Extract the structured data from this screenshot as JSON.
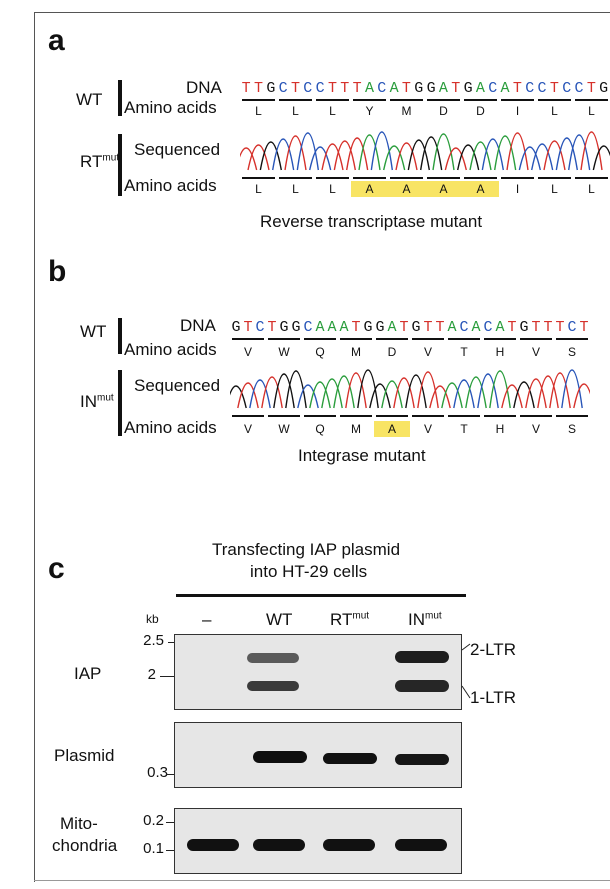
{
  "panels": {
    "a": {
      "letter": "a",
      "wt_label": "WT",
      "rt_label": "RT",
      "rt_sup": "mut",
      "dna_label": "DNA",
      "aa_label": "Amino acids",
      "sequenced_label": "Sequenced",
      "aa_label2": "Amino acids",
      "dna_seq": "TTGCTCCTTTACATGGATGACATCCTCCTG",
      "wt_aa": [
        "L",
        "L",
        "L",
        "Y",
        "M",
        "D",
        "D",
        "I",
        "L",
        "L"
      ],
      "mut_aa": [
        "L",
        "L",
        "L",
        "A",
        "A",
        "A",
        "A",
        "I",
        "L",
        "L"
      ],
      "highlight": [
        3,
        4,
        5,
        6
      ],
      "caption": "Reverse transcriptase mutant"
    },
    "b": {
      "letter": "b",
      "wt_label": "WT",
      "in_label": "IN",
      "in_sup": "mut",
      "dna_label": "DNA",
      "aa_label": "Amino acids",
      "sequenced_label": "Sequenced",
      "aa_label2": "Amino acids",
      "dna_seq": "GTCTGGCAAATGGATGTTACACATGTTTCT",
      "wt_aa": [
        "V",
        "W",
        "Q",
        "M",
        "D",
        "V",
        "T",
        "H",
        "V",
        "S"
      ],
      "mut_aa": [
        "V",
        "W",
        "Q",
        "M",
        "A",
        "V",
        "T",
        "H",
        "V",
        "S"
      ],
      "highlight": [
        4
      ],
      "caption": "Integrase mutant"
    },
    "c": {
      "letter": "c",
      "header_line1": "Transfecting IAP plasmid",
      "header_line2": "into HT-29 cells",
      "kb": "kb",
      "lanes": [
        "–",
        "WT",
        "RT",
        "IN"
      ],
      "lane_sup": [
        "",
        "",
        "mut",
        "mut"
      ],
      "iap_label": "IAP",
      "iap_markers": [
        "2.5",
        "2"
      ],
      "ltr2": "2-LTR",
      "ltr1": "1-LTR",
      "plasmid_label": "Plasmid",
      "plasmid_marker": "0.3",
      "mito_label1": "Mito-",
      "mito_label2": "chondria",
      "mito_markers": [
        "0.2",
        "0.1"
      ]
    }
  },
  "colors": {
    "A": "#2a9d3c",
    "C": "#2855b8",
    "G": "#111111",
    "T": "#d6312b",
    "highlight": "#f8e464"
  }
}
